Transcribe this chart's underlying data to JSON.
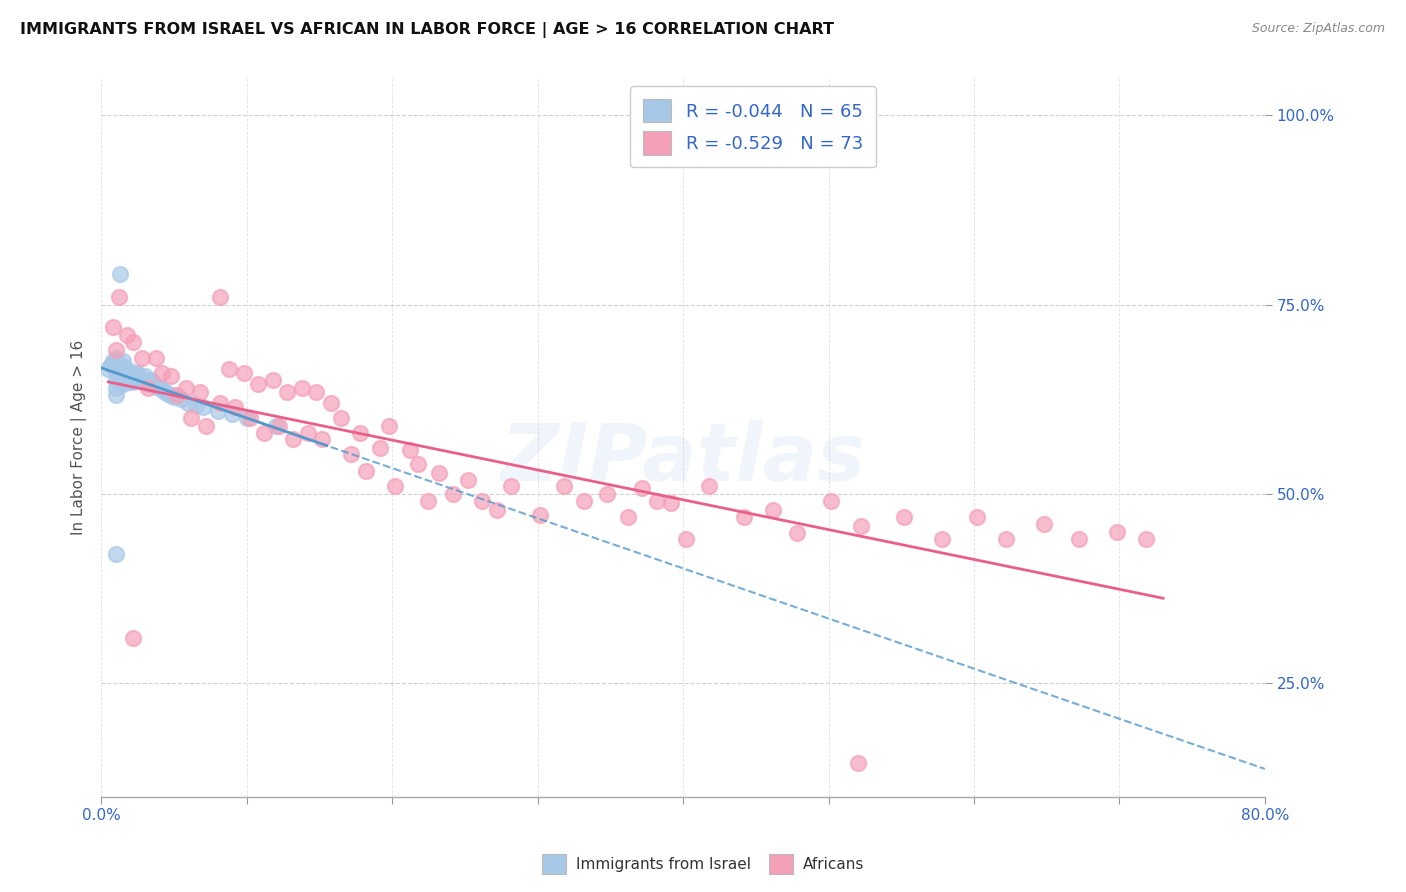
{
  "title": "IMMIGRANTS FROM ISRAEL VS AFRICAN IN LABOR FORCE | AGE > 16 CORRELATION CHART",
  "source": "Source: ZipAtlas.com",
  "ylabel": "In Labor Force | Age > 16",
  "ytick_values": [
    0.25,
    0.5,
    0.75,
    1.0
  ],
  "xlim": [
    0.0,
    0.8
  ],
  "ylim": [
    0.1,
    1.05
  ],
  "watermark": "ZIPatlas",
  "israel_color": "#a8c8e8",
  "african_color": "#f4a0b8",
  "israel_line_color": "#5599cc",
  "african_line_color": "#e8608a",
  "israel_R": -0.044,
  "israel_N": 65,
  "african_R": -0.529,
  "african_N": 73,
  "israel_x": [
    0.005,
    0.007,
    0.008,
    0.009,
    0.01,
    0.01,
    0.01,
    0.01,
    0.01,
    0.01,
    0.011,
    0.012,
    0.013,
    0.013,
    0.014,
    0.014,
    0.015,
    0.015,
    0.015,
    0.015,
    0.016,
    0.016,
    0.017,
    0.017,
    0.018,
    0.018,
    0.019,
    0.019,
    0.02,
    0.02,
    0.021,
    0.022,
    0.022,
    0.023,
    0.024,
    0.025,
    0.025,
    0.026,
    0.027,
    0.028,
    0.029,
    0.03,
    0.031,
    0.032,
    0.033,
    0.034,
    0.035,
    0.036,
    0.038,
    0.04,
    0.042,
    0.044,
    0.046,
    0.048,
    0.05,
    0.055,
    0.06,
    0.065,
    0.07,
    0.08,
    0.09,
    0.1,
    0.12,
    0.01,
    0.013
  ],
  "israel_y": [
    0.665,
    0.67,
    0.675,
    0.672,
    0.68,
    0.67,
    0.66,
    0.65,
    0.64,
    0.63,
    0.668,
    0.665,
    0.672,
    0.658,
    0.668,
    0.655,
    0.675,
    0.665,
    0.655,
    0.645,
    0.668,
    0.658,
    0.662,
    0.652,
    0.66,
    0.65,
    0.658,
    0.648,
    0.662,
    0.652,
    0.658,
    0.655,
    0.648,
    0.658,
    0.652,
    0.66,
    0.652,
    0.655,
    0.65,
    0.652,
    0.648,
    0.655,
    0.65,
    0.648,
    0.645,
    0.65,
    0.648,
    0.645,
    0.642,
    0.64,
    0.638,
    0.635,
    0.632,
    0.63,
    0.628,
    0.625,
    0.62,
    0.618,
    0.615,
    0.61,
    0.605,
    0.6,
    0.59,
    0.42,
    0.79
  ],
  "african_x": [
    0.008,
    0.01,
    0.012,
    0.018,
    0.022,
    0.028,
    0.032,
    0.038,
    0.042,
    0.048,
    0.052,
    0.058,
    0.062,
    0.068,
    0.072,
    0.082,
    0.088,
    0.092,
    0.098,
    0.102,
    0.108,
    0.112,
    0.118,
    0.122,
    0.128,
    0.132,
    0.138,
    0.142,
    0.148,
    0.152,
    0.158,
    0.165,
    0.172,
    0.178,
    0.182,
    0.192,
    0.198,
    0.202,
    0.212,
    0.218,
    0.225,
    0.232,
    0.242,
    0.252,
    0.262,
    0.272,
    0.282,
    0.302,
    0.318,
    0.332,
    0.348,
    0.362,
    0.372,
    0.382,
    0.392,
    0.402,
    0.418,
    0.442,
    0.462,
    0.478,
    0.502,
    0.522,
    0.552,
    0.578,
    0.602,
    0.622,
    0.648,
    0.672,
    0.698,
    0.718,
    0.52,
    0.022,
    0.082
  ],
  "african_y": [
    0.72,
    0.69,
    0.76,
    0.71,
    0.7,
    0.68,
    0.64,
    0.68,
    0.66,
    0.655,
    0.63,
    0.64,
    0.6,
    0.635,
    0.59,
    0.62,
    0.665,
    0.615,
    0.66,
    0.6,
    0.645,
    0.58,
    0.65,
    0.59,
    0.635,
    0.572,
    0.64,
    0.58,
    0.635,
    0.572,
    0.62,
    0.6,
    0.552,
    0.58,
    0.53,
    0.56,
    0.59,
    0.51,
    0.558,
    0.54,
    0.49,
    0.528,
    0.5,
    0.518,
    0.49,
    0.478,
    0.51,
    0.472,
    0.51,
    0.49,
    0.5,
    0.47,
    0.508,
    0.49,
    0.488,
    0.44,
    0.51,
    0.47,
    0.478,
    0.448,
    0.49,
    0.458,
    0.47,
    0.44,
    0.47,
    0.44,
    0.46,
    0.44,
    0.45,
    0.44,
    0.145,
    0.31,
    0.76
  ]
}
